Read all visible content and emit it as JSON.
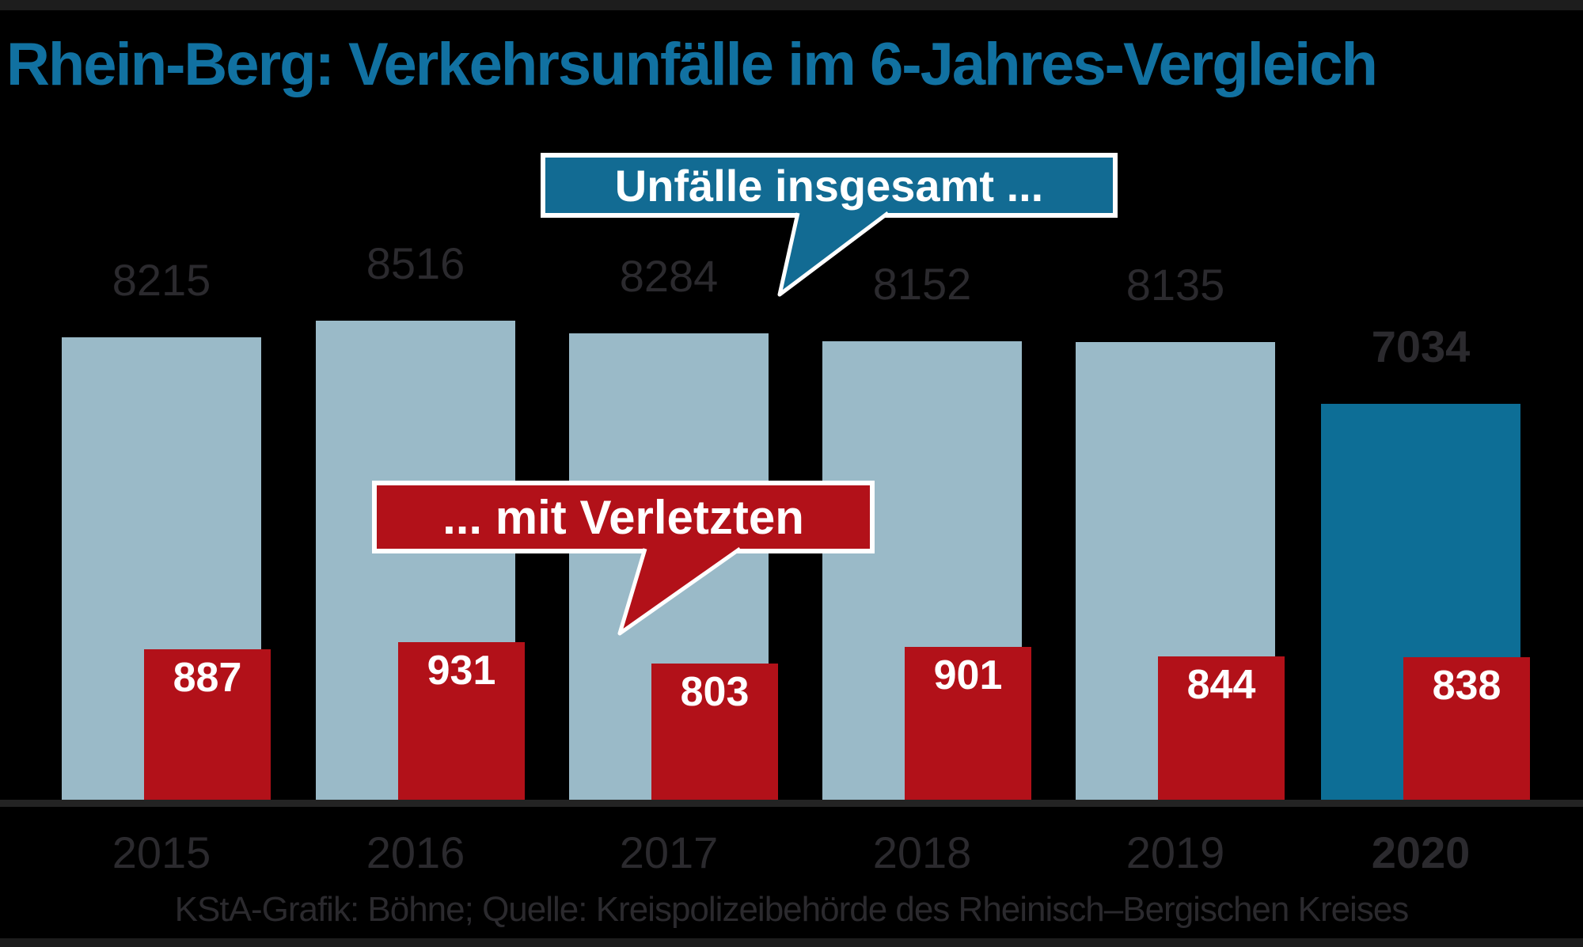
{
  "title": "Rhein-Berg: Verkehrsunfälle im 6-Jahres-Vergleich",
  "callouts": {
    "total": "Unfälle insgesamt ...",
    "injured": "... mit Verletzten"
  },
  "footer": "KStA-Grafik: Böhne; Quelle: Kreispolizeibehörde des Rheinisch–Bergischen Kreises",
  "colors": {
    "title_blue": "#1171a1",
    "light_blue": "#9abac8",
    "dark_blue": "#0d6e96",
    "callout_blue": "#126b93",
    "red": "#b21119",
    "dark_text": "#2b2a2e",
    "white": "#ffffff",
    "border_strip": "#1d1d1d",
    "axis_line": "#232323"
  },
  "chart_data": {
    "type": "bar",
    "title": "Rhein-Berg: Verkehrsunfälle im 6-Jahres-Vergleich",
    "categories": [
      "2015",
      "2016",
      "2017",
      "2018",
      "2019",
      "2020"
    ],
    "series": [
      {
        "name": "Unfälle insgesamt",
        "values": [
          8215,
          8516,
          8284,
          8152,
          8135,
          7034
        ]
      },
      {
        "name": "mit Verletzten",
        "values": [
          887,
          931,
          803,
          901,
          844,
          838
        ]
      }
    ],
    "highlight_category": "2020",
    "value_labels_shown": true,
    "grid": false,
    "legend_position": "floating-callouts",
    "xlabel": "",
    "ylabel": "",
    "source": "Kreispolizeibehörde des Rheinisch–Bergischen Kreises",
    "credit": "KStA-Grafik: Böhne"
  }
}
